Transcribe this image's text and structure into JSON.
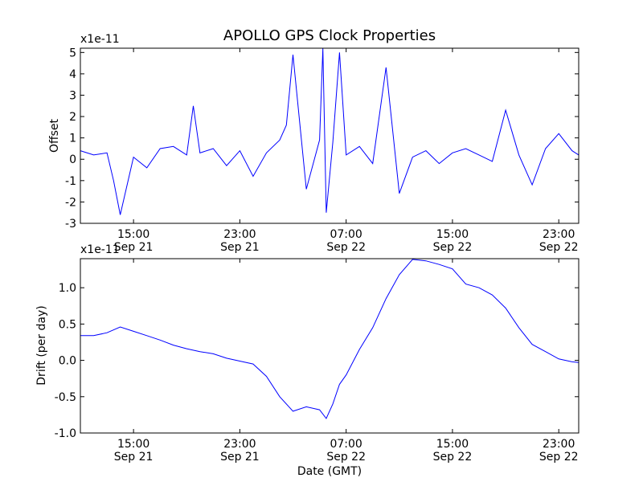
{
  "title": "APOLLO GPS Clock Properties",
  "chart_data": [
    {
      "type": "line",
      "ylabel": "Offset",
      "scale_label": "x1e-11",
      "xlim": [
        "2011-09-21 11:00",
        "2011-09-23 00:30"
      ],
      "ylim": [
        -3,
        5.2
      ],
      "yticks": [
        -3,
        -2,
        -1,
        0,
        1,
        2,
        3,
        4,
        5
      ],
      "ytick_labels": [
        "-3",
        "-2",
        "-1",
        "0",
        "1",
        "2",
        "3",
        "4",
        "5"
      ],
      "xticks": [
        {
          "time": "2011-09-21 15:00",
          "label": "15:00",
          "date": "Sep 21"
        },
        {
          "time": "2011-09-21 23:00",
          "label": "23:00",
          "date": "Sep 21"
        },
        {
          "time": "2011-09-22 07:00",
          "label": "07:00",
          "date": "Sep 22"
        },
        {
          "time": "2011-09-22 15:00",
          "label": "15:00",
          "date": "Sep 22"
        },
        {
          "time": "2011-09-22 23:00",
          "label": "23:00",
          "date": "Sep 22"
        }
      ],
      "series": [
        {
          "color": "#0000ff",
          "x": [
            "2011-09-21 11:00",
            "2011-09-21 12:00",
            "2011-09-21 13:00",
            "2011-09-21 13:30",
            "2011-09-21 14:00",
            "2011-09-21 15:00",
            "2011-09-21 16:00",
            "2011-09-21 17:00",
            "2011-09-21 18:00",
            "2011-09-21 19:00",
            "2011-09-21 19:30",
            "2011-09-21 20:00",
            "2011-09-21 21:00",
            "2011-09-21 22:00",
            "2011-09-21 23:00",
            "2011-09-22 00:00",
            "2011-09-22 01:00",
            "2011-09-22 02:00",
            "2011-09-22 02:30",
            "2011-09-22 03:00",
            "2011-09-22 04:00",
            "2011-09-22 05:00",
            "2011-09-22 05:15",
            "2011-09-22 05:30",
            "2011-09-22 06:00",
            "2011-09-22 06:30",
            "2011-09-22 07:00",
            "2011-09-22 08:00",
            "2011-09-22 09:00",
            "2011-09-22 10:00",
            "2011-09-22 11:00",
            "2011-09-22 12:00",
            "2011-09-22 13:00",
            "2011-09-22 14:00",
            "2011-09-22 15:00",
            "2011-09-22 16:00",
            "2011-09-22 17:00",
            "2011-09-22 18:00",
            "2011-09-22 19:00",
            "2011-09-22 20:00",
            "2011-09-22 21:00",
            "2011-09-22 22:00",
            "2011-09-22 23:00",
            "2011-09-23 00:00",
            "2011-09-23 00:30"
          ],
          "y": [
            0.4,
            0.2,
            0.3,
            -1.0,
            -2.6,
            0.1,
            -0.4,
            0.5,
            0.6,
            0.2,
            2.5,
            0.3,
            0.5,
            -0.3,
            0.4,
            -0.8,
            0.3,
            0.9,
            1.6,
            4.9,
            -1.4,
            0.9,
            5.2,
            -2.5,
            0.8,
            5.0,
            0.2,
            0.6,
            -0.2,
            4.3,
            -1.6,
            0.1,
            0.4,
            -0.2,
            0.3,
            0.5,
            0.2,
            -0.1,
            2.3,
            0.2,
            -1.2,
            0.5,
            1.2,
            0.4,
            0.2
          ]
        }
      ]
    },
    {
      "type": "line",
      "ylabel": "Drift (per day)",
      "xlabel": "Date (GMT)",
      "scale_label": "x1e-11",
      "xlim": [
        "2011-09-21 11:00",
        "2011-09-23 00:30"
      ],
      "ylim": [
        -1.0,
        1.4
      ],
      "yticks": [
        -1.0,
        -0.5,
        0.0,
        0.5,
        1.0
      ],
      "ytick_labels": [
        "-1.0",
        "-0.5",
        "0.0",
        "0.5",
        "1.0"
      ],
      "xticks": [
        {
          "time": "2011-09-21 15:00",
          "label": "15:00",
          "date": "Sep 21"
        },
        {
          "time": "2011-09-21 23:00",
          "label": "23:00",
          "date": "Sep 21"
        },
        {
          "time": "2011-09-22 07:00",
          "label": "07:00",
          "date": "Sep 22"
        },
        {
          "time": "2011-09-22 15:00",
          "label": "15:00",
          "date": "Sep 22"
        },
        {
          "time": "2011-09-22 23:00",
          "label": "23:00",
          "date": "Sep 22"
        }
      ],
      "series": [
        {
          "color": "#0000ff",
          "x": [
            "2011-09-21 11:00",
            "2011-09-21 12:00",
            "2011-09-21 13:00",
            "2011-09-21 14:00",
            "2011-09-21 15:00",
            "2011-09-21 16:00",
            "2011-09-21 17:00",
            "2011-09-21 18:00",
            "2011-09-21 19:00",
            "2011-09-21 20:00",
            "2011-09-21 21:00",
            "2011-09-21 22:00",
            "2011-09-21 23:00",
            "2011-09-22 00:00",
            "2011-09-22 01:00",
            "2011-09-22 02:00",
            "2011-09-22 03:00",
            "2011-09-22 04:00",
            "2011-09-22 05:00",
            "2011-09-22 05:30",
            "2011-09-22 06:00",
            "2011-09-22 06:30",
            "2011-09-22 07:00",
            "2011-09-22 08:00",
            "2011-09-22 09:00",
            "2011-09-22 10:00",
            "2011-09-22 11:00",
            "2011-09-22 12:00",
            "2011-09-22 13:00",
            "2011-09-22 14:00",
            "2011-09-22 15:00",
            "2011-09-22 16:00",
            "2011-09-22 17:00",
            "2011-09-22 18:00",
            "2011-09-22 19:00",
            "2011-09-22 20:00",
            "2011-09-22 21:00",
            "2011-09-22 22:00",
            "2011-09-22 23:00",
            "2011-09-23 00:00",
            "2011-09-23 00:30"
          ],
          "y": [
            0.34,
            0.34,
            0.38,
            0.46,
            0.4,
            0.34,
            0.28,
            0.21,
            0.16,
            0.12,
            0.09,
            0.03,
            -0.01,
            -0.05,
            -0.22,
            -0.5,
            -0.7,
            -0.64,
            -0.68,
            -0.8,
            -0.6,
            -0.33,
            -0.2,
            0.15,
            0.45,
            0.85,
            1.18,
            1.39,
            1.37,
            1.32,
            1.26,
            1.05,
            1.0,
            0.9,
            0.72,
            0.45,
            0.22,
            0.12,
            0.02,
            -0.02,
            -0.03
          ]
        }
      ]
    }
  ]
}
